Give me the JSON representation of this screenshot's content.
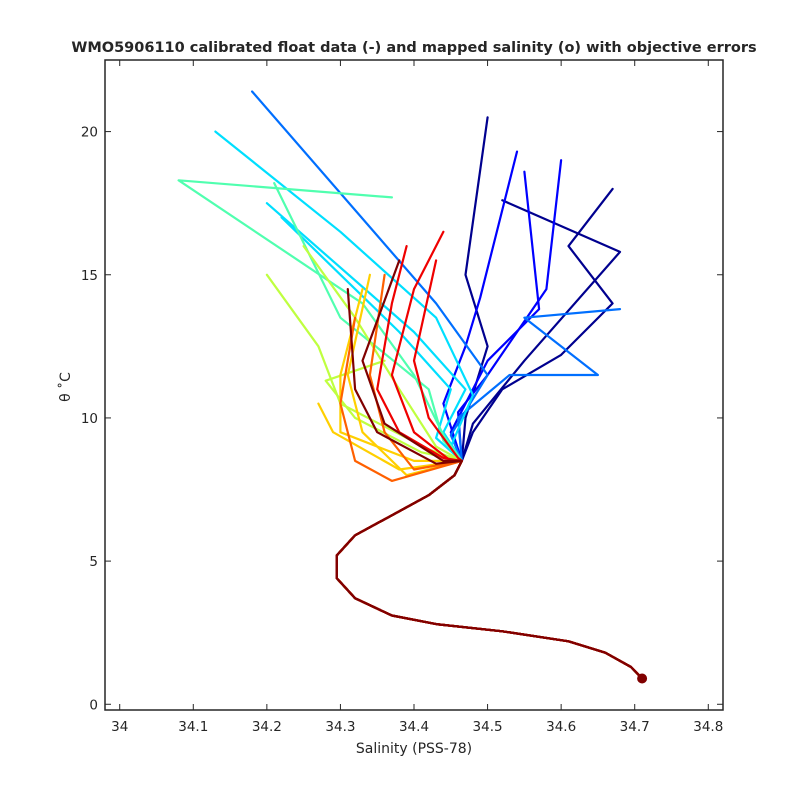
{
  "chart_data": {
    "type": "line",
    "title": "WMO5906110 calibrated float data (-) and mapped salinity (o) with objective errors",
    "xlabel": "Salinity (PSS-78)",
    "ylabel": "θ ˚C",
    "xlim": [
      33.98,
      34.82
    ],
    "ylim": [
      -0.2,
      22.5
    ],
    "xticks": [
      "34",
      "34.1",
      "34.2",
      "34.3",
      "34.4",
      "34.5",
      "34.6",
      "34.7",
      "34.8"
    ],
    "yticks": [
      "0",
      "5",
      "10",
      "15",
      "20"
    ],
    "grid": false,
    "legend": "none",
    "colormap": "jet",
    "colors": [
      "#00008f",
      "#0000ff",
      "#006fff",
      "#00dfff",
      "#50ffaf",
      "#bfff40",
      "#ffcf00",
      "#ff6000",
      "#ef0000",
      "#800000"
    ],
    "common_deep_profile": [
      {
        "x": 34.71,
        "y": 0.9
      },
      {
        "x": 34.695,
        "y": 1.3
      },
      {
        "x": 34.66,
        "y": 1.8
      },
      {
        "x": 34.61,
        "y": 2.2
      },
      {
        "x": 34.52,
        "y": 2.55
      },
      {
        "x": 34.43,
        "y": 2.8
      },
      {
        "x": 34.37,
        "y": 3.1
      },
      {
        "x": 34.32,
        "y": 3.7
      },
      {
        "x": 34.295,
        "y": 4.4
      },
      {
        "x": 34.295,
        "y": 5.2
      },
      {
        "x": 34.32,
        "y": 5.9
      },
      {
        "x": 34.37,
        "y": 6.6
      },
      {
        "x": 34.42,
        "y": 7.3
      },
      {
        "x": 34.455,
        "y": 8.0
      },
      {
        "x": 34.465,
        "y": 8.5
      }
    ],
    "series": [
      {
        "values": [
          {
            "x": 34.48,
            "y": 9.5
          },
          {
            "x": 34.52,
            "y": 11.0
          },
          {
            "x": 34.6,
            "y": 12.2
          },
          {
            "x": 34.67,
            "y": 14.0
          },
          {
            "x": 34.61,
            "y": 16.0
          },
          {
            "x": 34.67,
            "y": 18.0
          }
        ]
      },
      {
        "values": [
          {
            "x": 34.47,
            "y": 10.0
          },
          {
            "x": 34.5,
            "y": 12.5
          },
          {
            "x": 34.47,
            "y": 15.0
          },
          {
            "x": 34.5,
            "y": 20.5
          }
        ]
      },
      {
        "values": [
          {
            "x": 34.48,
            "y": 9.8
          },
          {
            "x": 34.55,
            "y": 12.0
          },
          {
            "x": 34.68,
            "y": 15.8
          },
          {
            "x": 34.52,
            "y": 17.6
          }
        ]
      },
      {
        "values": [
          {
            "x": 34.46,
            "y": 10.2
          },
          {
            "x": 34.5,
            "y": 11.5
          },
          {
            "x": 34.58,
            "y": 14.5
          },
          {
            "x": 34.6,
            "y": 19.0
          }
        ]
      },
      {
        "values": [
          {
            "x": 34.45,
            "y": 9.5
          },
          {
            "x": 34.5,
            "y": 12.0
          },
          {
            "x": 34.57,
            "y": 13.8
          },
          {
            "x": 34.55,
            "y": 18.6
          }
        ]
      },
      {
        "values": [
          {
            "x": 34.44,
            "y": 10.5
          },
          {
            "x": 34.47,
            "y": 12.5
          },
          {
            "x": 34.49,
            "y": 14.2
          },
          {
            "x": 34.54,
            "y": 19.3
          }
        ]
      },
      {
        "values": [
          {
            "x": 34.45,
            "y": 9.4
          },
          {
            "x": 34.5,
            "y": 11.5
          },
          {
            "x": 34.43,
            "y": 14.0
          },
          {
            "x": 34.18,
            "y": 21.4
          }
        ]
      },
      {
        "values": [
          {
            "x": 34.46,
            "y": 10.0
          },
          {
            "x": 34.53,
            "y": 11.5
          },
          {
            "x": 34.65,
            "y": 11.5
          },
          {
            "x": 34.55,
            "y": 13.5
          },
          {
            "x": 34.68,
            "y": 13.8
          }
        ]
      },
      {
        "values": [
          {
            "x": 34.44,
            "y": 9.5
          },
          {
            "x": 34.47,
            "y": 11.0
          },
          {
            "x": 34.4,
            "y": 13.0
          },
          {
            "x": 34.2,
            "y": 17.5
          }
        ]
      },
      {
        "values": [
          {
            "x": 34.45,
            "y": 9.0
          },
          {
            "x": 34.48,
            "y": 10.8
          },
          {
            "x": 34.43,
            "y": 13.5
          },
          {
            "x": 34.3,
            "y": 16.5
          },
          {
            "x": 34.13,
            "y": 20.0
          }
        ]
      },
      {
        "values": [
          {
            "x": 34.43,
            "y": 9.3
          },
          {
            "x": 34.45,
            "y": 11.0
          },
          {
            "x": 34.38,
            "y": 13.0
          },
          {
            "x": 34.22,
            "y": 17.0
          }
        ]
      },
      {
        "values": [
          {
            "x": 34.44,
            "y": 9.2
          },
          {
            "x": 34.42,
            "y": 11.0
          },
          {
            "x": 34.3,
            "y": 13.5
          },
          {
            "x": 34.21,
            "y": 18.2
          }
        ]
      },
      {
        "values": [
          {
            "x": 34.44,
            "y": 9.4
          },
          {
            "x": 34.4,
            "y": 11.5
          },
          {
            "x": 34.33,
            "y": 14.0
          },
          {
            "x": 34.08,
            "y": 18.3
          },
          {
            "x": 34.37,
            "y": 17.7
          }
        ]
      },
      {
        "values": [
          {
            "x": 34.43,
            "y": 9.0
          },
          {
            "x": 34.38,
            "y": 11.0
          },
          {
            "x": 34.32,
            "y": 13.5
          },
          {
            "x": 34.25,
            "y": 16.0
          }
        ]
      },
      {
        "values": [
          {
            "x": 34.42,
            "y": 8.9
          },
          {
            "x": 34.3,
            "y": 10.5
          },
          {
            "x": 34.27,
            "y": 12.5
          },
          {
            "x": 34.2,
            "y": 15.0
          }
        ]
      },
      {
        "values": [
          {
            "x": 34.41,
            "y": 8.8
          },
          {
            "x": 34.32,
            "y": 10.0
          },
          {
            "x": 34.28,
            "y": 11.3
          },
          {
            "x": 34.36,
            "y": 12.0
          }
        ]
      },
      {
        "values": [
          {
            "x": 34.4,
            "y": 8.5
          },
          {
            "x": 34.3,
            "y": 9.5
          },
          {
            "x": 34.3,
            "y": 11.5
          },
          {
            "x": 34.33,
            "y": 14.5
          }
        ]
      },
      {
        "values": [
          {
            "x": 34.38,
            "y": 8.2
          },
          {
            "x": 34.29,
            "y": 9.5
          },
          {
            "x": 34.27,
            "y": 10.5
          }
        ]
      },
      {
        "values": [
          {
            "x": 34.39,
            "y": 8.0
          },
          {
            "x": 34.33,
            "y": 9.5
          },
          {
            "x": 34.31,
            "y": 11.5
          },
          {
            "x": 34.34,
            "y": 15.0
          }
        ]
      },
      {
        "values": [
          {
            "x": 34.37,
            "y": 7.8
          },
          {
            "x": 34.32,
            "y": 8.5
          },
          {
            "x": 34.3,
            "y": 10.5
          },
          {
            "x": 34.32,
            "y": 13.5
          }
        ]
      },
      {
        "values": [
          {
            "x": 34.4,
            "y": 8.2
          },
          {
            "x": 34.36,
            "y": 9.5
          },
          {
            "x": 34.34,
            "y": 11.5
          },
          {
            "x": 34.36,
            "y": 15.0
          }
        ]
      },
      {
        "values": [
          {
            "x": 34.44,
            "y": 8.6
          },
          {
            "x": 34.38,
            "y": 9.5
          },
          {
            "x": 34.35,
            "y": 11.0
          },
          {
            "x": 34.37,
            "y": 14.0
          },
          {
            "x": 34.39,
            "y": 16.0
          }
        ]
      },
      {
        "values": [
          {
            "x": 34.45,
            "y": 8.5
          },
          {
            "x": 34.4,
            "y": 9.5
          },
          {
            "x": 34.37,
            "y": 11.5
          },
          {
            "x": 34.4,
            "y": 14.5
          },
          {
            "x": 34.44,
            "y": 16.5
          }
        ]
      },
      {
        "values": [
          {
            "x": 34.46,
            "y": 8.6
          },
          {
            "x": 34.42,
            "y": 10.0
          },
          {
            "x": 34.4,
            "y": 12.0
          },
          {
            "x": 34.43,
            "y": 15.5
          }
        ]
      },
      {
        "values": [
          {
            "x": 34.44,
            "y": 8.5
          },
          {
            "x": 34.36,
            "y": 9.8
          },
          {
            "x": 34.33,
            "y": 12.0
          },
          {
            "x": 34.38,
            "y": 15.5
          }
        ]
      },
      {
        "values": [
          {
            "x": 34.43,
            "y": 8.4
          },
          {
            "x": 34.35,
            "y": 9.5
          },
          {
            "x": 34.32,
            "y": 11.0
          },
          {
            "x": 34.31,
            "y": 14.5
          }
        ]
      }
    ]
  }
}
